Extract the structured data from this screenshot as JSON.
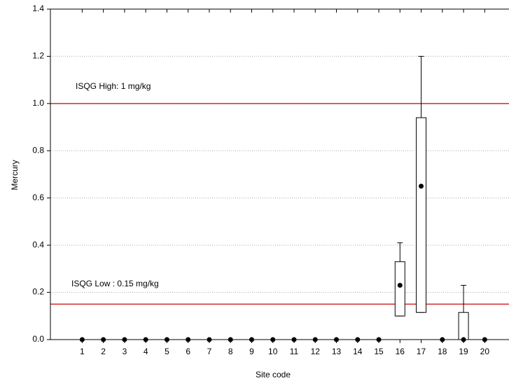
{
  "chart_data": {
    "type": "box",
    "x_label": "Site code",
    "y_label": "Mercury",
    "categories": [
      "1",
      "2",
      "3",
      "4",
      "5",
      "6",
      "7",
      "8",
      "9",
      "10",
      "11",
      "12",
      "13",
      "14",
      "15",
      "16",
      "17",
      "18",
      "19",
      "20"
    ],
    "median": [
      0,
      0,
      0,
      0,
      0,
      0,
      0,
      0,
      0,
      0,
      0,
      0,
      0,
      0,
      0,
      0.23,
      0.65,
      0,
      0,
      0
    ],
    "q1": [
      0,
      0,
      0,
      0,
      0,
      0,
      0,
      0,
      0,
      0,
      0,
      0,
      0,
      0,
      0,
      0.1,
      0.115,
      0,
      0,
      0
    ],
    "q3": [
      0,
      0,
      0,
      0,
      0,
      0,
      0,
      0,
      0,
      0,
      0,
      0,
      0,
      0,
      0,
      0.33,
      0.94,
      0,
      0.115,
      0
    ],
    "min": [
      0,
      0,
      0,
      0,
      0,
      0,
      0,
      0,
      0,
      0,
      0,
      0,
      0,
      0,
      0,
      0.1,
      0.115,
      0,
      0,
      0
    ],
    "max": [
      0,
      0,
      0,
      0,
      0,
      0,
      0,
      0,
      0,
      0,
      0,
      0,
      0,
      0,
      0,
      0.41,
      1.2,
      0,
      0.23,
      0
    ],
    "ylim": [
      0,
      1.4
    ],
    "yticks": [
      {
        "value": 0,
        "label": "0.0"
      },
      0.2,
      0.4,
      0.6,
      0.8,
      {
        "value": 1,
        "label": "1.0"
      },
      1.2,
      1.4
    ],
    "grid": true,
    "reference_lines": [
      {
        "value": 1,
        "label": "ISQG High: 1 mg/kg",
        "color": "#d62728"
      },
      {
        "value": 0.15,
        "label": "ISQG Low : 0.15 mg/kg",
        "color": "#d62728"
      }
    ]
  }
}
